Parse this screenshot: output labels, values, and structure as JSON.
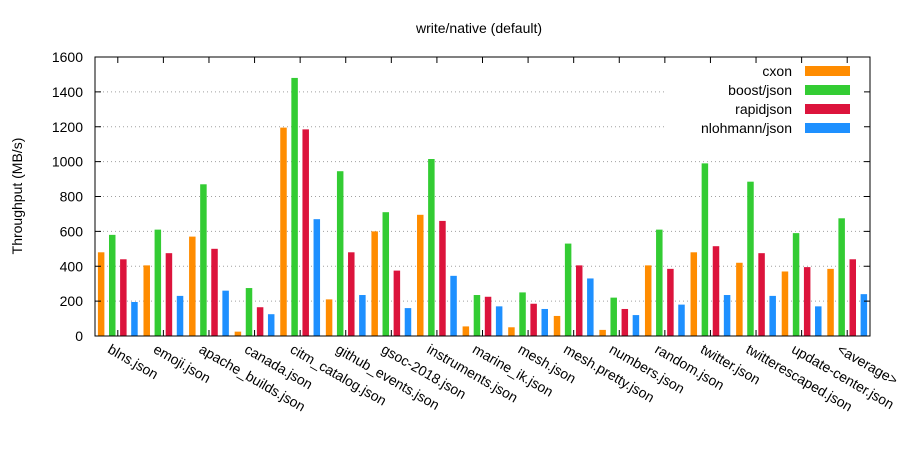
{
  "chart_data": {
    "type": "bar",
    "title": "write/native (default)",
    "ylabel": "Throughput (MB/s)",
    "xlabel": "",
    "ylim": [
      0,
      1600
    ],
    "yticks": [
      0,
      200,
      400,
      600,
      800,
      1000,
      1200,
      1400,
      1600
    ],
    "grid": true,
    "legend_position": "top-right",
    "categories": [
      "blns.json",
      "emoji.json",
      "apache_builds.json",
      "canada.json",
      "citm_catalog.json",
      "github_events.json",
      "gsoc-2018.json",
      "instruments.json",
      "marine_ik.json",
      "mesh.json",
      "mesh.pretty.json",
      "numbers.json",
      "random.json",
      "twitter.json",
      "twitterescaped.json",
      "update-center.json",
      "<average>"
    ],
    "series": [
      {
        "name": "cxon",
        "color": "#ff8c00",
        "values": [
          480,
          405,
          570,
          25,
          1195,
          210,
          600,
          695,
          55,
          50,
          115,
          35,
          405,
          480,
          420,
          370,
          385
        ]
      },
      {
        "name": "boost/json",
        "color": "#33cc33",
        "values": [
          580,
          610,
          870,
          275,
          1480,
          945,
          710,
          1015,
          235,
          250,
          530,
          220,
          610,
          990,
          885,
          590,
          675
        ]
      },
      {
        "name": "rapidjson",
        "color": "#dc143c",
        "values": [
          440,
          475,
          500,
          165,
          1185,
          480,
          375,
          660,
          225,
          185,
          405,
          155,
          385,
          515,
          475,
          395,
          440
        ]
      },
      {
        "name": "nlohmann/json",
        "color": "#1e90ff",
        "values": [
          195,
          230,
          260,
          125,
          670,
          235,
          160,
          345,
          170,
          155,
          330,
          120,
          180,
          235,
          230,
          170,
          240
        ]
      }
    ]
  }
}
